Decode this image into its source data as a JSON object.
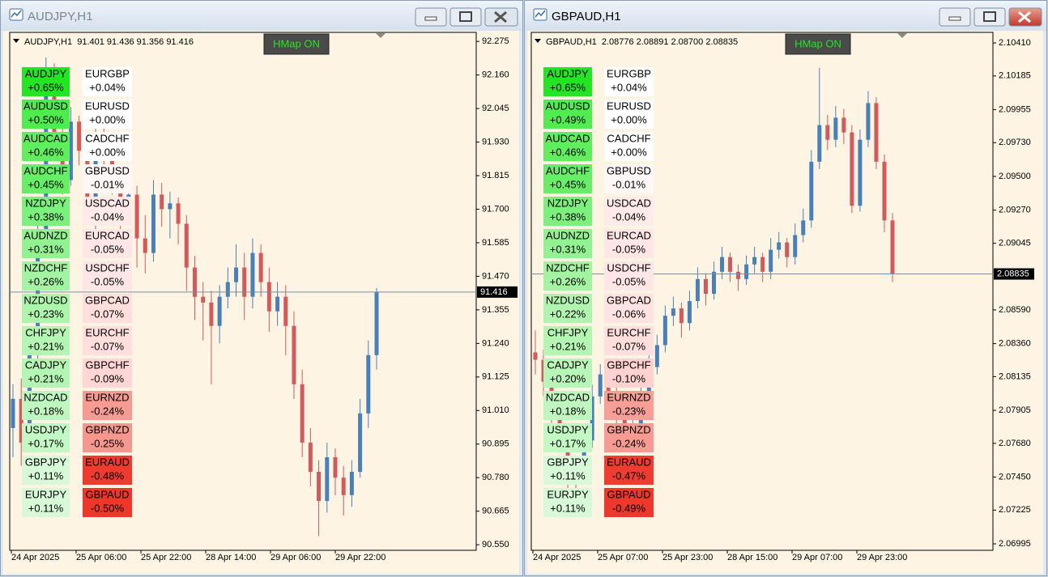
{
  "bull_color": "#4a80b8",
  "bear_color": "#d2595c",
  "windows": [
    {
      "title": "AUDJPY,H1",
      "info": "AUDJPY,H1  91.401 91.436 91.356 91.416",
      "button": "HMap ON",
      "ylim": [
        90.531,
        92.306
      ],
      "yticks": [
        92.275,
        {
          "value": 92.16,
          "label": "92.160"
        },
        92.045,
        {
          "value": 91.93,
          "label": "91.930"
        },
        91.815,
        {
          "value": 91.7,
          "label": "91.700"
        },
        91.585,
        {
          "value": 91.47,
          "label": "91.470"
        },
        91.355,
        {
          "value": 91.24,
          "label": "91.240"
        },
        91.125,
        {
          "value": 91.01,
          "label": "91.010"
        },
        90.895,
        {
          "value": 90.78,
          "label": "90.780"
        },
        90.665,
        {
          "value": 90.55,
          "label": "90.550"
        }
      ],
      "current_price": 91.416,
      "x_labels": [
        "24 Apr 2025",
        "25 Apr 06:00",
        "25 Apr 22:00",
        "28 Apr 14:00",
        "29 Apr 06:00",
        "29 Apr 22:00"
      ],
      "left_tiles": [
        {
          "symbol": "AUDJPY",
          "change": "+0.65%",
          "color": "#22e622"
        },
        {
          "symbol": "AUDUSD",
          "change": "+0.50%",
          "color": "#4ded4d"
        },
        {
          "symbol": "AUDCAD",
          "change": "+0.46%",
          "color": "#5eee5e"
        },
        {
          "symbol": "AUDCHF",
          "change": "+0.45%",
          "color": "#66ef66"
        },
        {
          "symbol": "NZDJPY",
          "change": "+0.38%",
          "color": "#7cf07c"
        },
        {
          "symbol": "AUDNZD",
          "change": "+0.31%",
          "color": "#92f292"
        },
        {
          "symbol": "NZDCHF",
          "change": "+0.26%",
          "color": "#a3f3a3"
        },
        {
          "symbol": "NZDUSD",
          "change": "+0.23%",
          "color": "#adf4ad"
        },
        {
          "symbol": "CHFJPY",
          "change": "+0.21%",
          "color": "#b4f5b4"
        },
        {
          "symbol": "CADJPY",
          "change": "+0.21%",
          "color": "#b4f5b4"
        },
        {
          "symbol": "NZDCAD",
          "change": "+0.18%",
          "color": "#bff6bf"
        },
        {
          "symbol": "USDJPY",
          "change": "+0.17%",
          "color": "#c3f7c3"
        },
        {
          "symbol": "GBPJPY",
          "change": "+0.11%",
          "color": "#d8f9d8"
        },
        {
          "symbol": "EURJPY",
          "change": "+0.11%",
          "color": "#d8f9d8"
        }
      ],
      "right_tiles": [
        {
          "symbol": "EURGBP",
          "change": "+0.04%",
          "color": "#ffffff"
        },
        {
          "symbol": "EURUSD",
          "change": "+0.00%",
          "color": "#ffffff"
        },
        {
          "symbol": "CADCHF",
          "change": "+0.00%",
          "color": "#ffffff"
        },
        {
          "symbol": "GBPUSD",
          "change": "-0.01%",
          "color": "#fff6f6"
        },
        {
          "symbol": "USDCAD",
          "change": "-0.04%",
          "color": "#ffeaea"
        },
        {
          "symbol": "EURCAD",
          "change": "-0.05%",
          "color": "#ffe6e6"
        },
        {
          "symbol": "USDCHF",
          "change": "-0.05%",
          "color": "#ffe6e6"
        },
        {
          "symbol": "GBPCAD",
          "change": "-0.07%",
          "color": "#ffdede"
        },
        {
          "symbol": "EURCHF",
          "change": "-0.07%",
          "color": "#ffdede"
        },
        {
          "symbol": "GBPCHF",
          "change": "-0.09%",
          "color": "#ffd6d6"
        },
        {
          "symbol": "EURNZD",
          "change": "-0.24%",
          "color": "#f59b94"
        },
        {
          "symbol": "GBPNZD",
          "change": "-0.25%",
          "color": "#f5968f"
        },
        {
          "symbol": "EURAUD",
          "change": "-0.48%",
          "color": "#ef3a2f"
        },
        {
          "symbol": "GBPAUD",
          "change": "-0.50%",
          "color": "#ee362b"
        }
      ],
      "candles": [
        [
          90.95,
          91.1,
          90.85,
          91.05
        ],
        [
          91.05,
          91.12,
          90.82,
          90.9
        ],
        [
          90.9,
          91.25,
          90.88,
          91.2
        ],
        [
          91.2,
          91.65,
          91.15,
          91.6
        ],
        [
          91.6,
          92.22,
          91.55,
          92.1
        ],
        [
          92.1,
          92.2,
          91.9,
          91.95
        ],
        [
          91.95,
          92.0,
          91.75,
          91.8
        ],
        [
          91.8,
          92.05,
          91.78,
          92.0
        ],
        [
          92.0,
          92.02,
          91.85,
          91.9
        ],
        [
          91.9,
          91.95,
          91.65,
          91.7
        ],
        [
          91.7,
          91.98,
          91.62,
          91.95
        ],
        [
          91.95,
          92.0,
          91.85,
          91.92
        ],
        [
          91.92,
          91.94,
          91.75,
          91.8
        ],
        [
          91.8,
          91.85,
          91.6,
          91.7
        ],
        [
          91.7,
          91.8,
          91.65,
          91.75
        ],
        [
          91.75,
          91.78,
          91.5,
          91.6
        ],
        [
          91.6,
          91.68,
          91.48,
          91.55
        ],
        [
          91.55,
          91.8,
          91.52,
          91.75
        ],
        [
          91.75,
          91.79,
          91.64,
          91.7
        ],
        [
          91.7,
          91.76,
          91.6,
          91.72
        ],
        [
          91.72,
          91.74,
          91.58,
          91.65
        ],
        [
          91.65,
          91.68,
          91.42,
          91.5
        ],
        [
          91.5,
          91.54,
          91.32,
          91.4
        ],
        [
          91.4,
          91.45,
          91.25,
          91.38
        ],
        [
          91.38,
          91.42,
          91.1,
          91.3
        ],
        [
          91.3,
          91.44,
          91.24,
          91.4
        ],
        [
          91.4,
          91.5,
          91.36,
          91.45
        ],
        [
          91.45,
          91.58,
          91.4,
          91.5
        ],
        [
          91.5,
          91.55,
          91.32,
          91.4
        ],
        [
          91.4,
          91.6,
          91.36,
          91.55
        ],
        [
          91.55,
          91.58,
          91.4,
          91.45
        ],
        [
          91.45,
          91.5,
          91.28,
          91.35
        ],
        [
          91.35,
          91.45,
          91.3,
          91.4
        ],
        [
          91.4,
          91.44,
          91.2,
          91.3
        ],
        [
          91.3,
          91.35,
          91.05,
          91.1
        ],
        [
          91.1,
          91.15,
          90.85,
          90.9
        ],
        [
          90.9,
          90.95,
          90.75,
          90.8
        ],
        [
          90.8,
          90.84,
          90.58,
          90.7
        ],
        [
          90.7,
          90.9,
          90.66,
          90.85
        ],
        [
          90.85,
          90.88,
          90.72,
          90.78
        ],
        [
          90.78,
          90.82,
          90.65,
          90.72
        ],
        [
          90.72,
          90.84,
          90.68,
          90.8
        ],
        [
          90.8,
          91.05,
          90.78,
          91.0
        ],
        [
          91.0,
          91.25,
          90.95,
          91.2
        ],
        [
          91.2,
          91.43,
          91.15,
          91.416
        ]
      ]
    },
    {
      "title": "GBPAUD,H1",
      "info": "GBPAUD,H1  2.08776 2.08891 2.08700 2.08835",
      "button": "HMap ON",
      "ylim": [
        2.06951,
        2.10482
      ],
      "yticks": [
        {
          "value": 2.1041,
          "label": "2.10410"
        },
        2.10185,
        2.09955,
        {
          "value": 2.0973,
          "label": "2.09730"
        },
        {
          "value": 2.095,
          "label": "2.09500"
        },
        {
          "value": 2.0927,
          "label": "2.09270"
        },
        2.09045,
        {
          "value": 2.0859,
          "label": "2.08590"
        },
        {
          "value": 2.0836,
          "label": "2.08360"
        },
        2.08135,
        2.07905,
        {
          "value": 2.0768,
          "label": "2.07680"
        },
        {
          "value": 2.0745,
          "label": "2.07450"
        },
        2.07225,
        2.06995
      ],
      "current_price": 2.08835,
      "x_labels": [
        "24 Apr 2025",
        "25 Apr 07:00",
        "25 Apr 23:00",
        "28 Apr 15:00",
        "29 Apr 07:00",
        "29 Apr 23:00"
      ],
      "left_tiles": [
        {
          "symbol": "AUDJPY",
          "change": "+0.65%",
          "color": "#22e622"
        },
        {
          "symbol": "AUDUSD",
          "change": "+0.49%",
          "color": "#50ed50"
        },
        {
          "symbol": "AUDCAD",
          "change": "+0.46%",
          "color": "#5eee5e"
        },
        {
          "symbol": "AUDCHF",
          "change": "+0.45%",
          "color": "#66ef66"
        },
        {
          "symbol": "NZDJPY",
          "change": "+0.38%",
          "color": "#7cf07c"
        },
        {
          "symbol": "AUDNZD",
          "change": "+0.31%",
          "color": "#92f292"
        },
        {
          "symbol": "NZDCHF",
          "change": "+0.26%",
          "color": "#a3f3a3"
        },
        {
          "symbol": "NZDUSD",
          "change": "+0.22%",
          "color": "#b0f4b0"
        },
        {
          "symbol": "CHFJPY",
          "change": "+0.21%",
          "color": "#b4f5b4"
        },
        {
          "symbol": "CADJPY",
          "change": "+0.20%",
          "color": "#b8f5b8"
        },
        {
          "symbol": "NZDCAD",
          "change": "+0.18%",
          "color": "#bff6bf"
        },
        {
          "symbol": "USDJPY",
          "change": "+0.17%",
          "color": "#c3f7c3"
        },
        {
          "symbol": "GBPJPY",
          "change": "+0.11%",
          "color": "#d8f9d8"
        },
        {
          "symbol": "EURJPY",
          "change": "+0.11%",
          "color": "#d8f9d8"
        }
      ],
      "right_tiles": [
        {
          "symbol": "EURGBP",
          "change": "+0.04%",
          "color": "#ffffff"
        },
        {
          "symbol": "EURUSD",
          "change": "+0.00%",
          "color": "#ffffff"
        },
        {
          "symbol": "CADCHF",
          "change": "+0.00%",
          "color": "#ffffff"
        },
        {
          "symbol": "GBPUSD",
          "change": "-0.01%",
          "color": "#fff6f6"
        },
        {
          "symbol": "USDCAD",
          "change": "-0.04%",
          "color": "#ffeaea"
        },
        {
          "symbol": "EURCAD",
          "change": "-0.05%",
          "color": "#ffe6e6"
        },
        {
          "symbol": "USDCHF",
          "change": "-0.05%",
          "color": "#ffe6e6"
        },
        {
          "symbol": "GBPCAD",
          "change": "-0.06%",
          "color": "#ffe2e2"
        },
        {
          "symbol": "EURCHF",
          "change": "-0.07%",
          "color": "#ffdede"
        },
        {
          "symbol": "GBPCHF",
          "change": "-0.10%",
          "color": "#ffd2d2"
        },
        {
          "symbol": "EURNZD",
          "change": "-0.23%",
          "color": "#f59f98"
        },
        {
          "symbol": "GBPNZD",
          "change": "-0.24%",
          "color": "#f59b94"
        },
        {
          "symbol": "EURAUD",
          "change": "-0.47%",
          "color": "#ef3c31"
        },
        {
          "symbol": "GBPAUD",
          "change": "-0.49%",
          "color": "#ee382d"
        }
      ],
      "candles": [
        [
          2.083,
          2.0845,
          2.0815,
          2.0825
        ],
        [
          2.0825,
          2.0832,
          2.08,
          2.081
        ],
        [
          2.081,
          2.0815,
          2.078,
          2.079
        ],
        [
          2.079,
          2.0798,
          2.0765,
          2.0775
        ],
        [
          2.0775,
          2.078,
          2.0735,
          2.075
        ],
        [
          2.075,
          2.0758,
          2.0728,
          2.0745
        ],
        [
          2.0745,
          2.0778,
          2.074,
          2.077
        ],
        [
          2.077,
          2.0808,
          2.0765,
          2.08
        ],
        [
          2.08,
          2.0822,
          2.0795,
          2.0815
        ],
        [
          2.0815,
          2.082,
          2.0792,
          2.08
        ],
        [
          2.08,
          2.0806,
          2.078,
          2.079
        ],
        [
          2.079,
          2.0795,
          2.0765,
          2.0775
        ],
        [
          2.0775,
          2.0788,
          2.077,
          2.078
        ],
        [
          2.078,
          2.0808,
          2.0776,
          2.08
        ],
        [
          2.08,
          2.0828,
          2.0795,
          2.082
        ],
        [
          2.082,
          2.0842,
          2.0815,
          2.0835
        ],
        [
          2.0835,
          2.0862,
          2.083,
          2.0855
        ],
        [
          2.0855,
          2.0868,
          2.0848,
          2.086
        ],
        [
          2.086,
          2.0864,
          2.084,
          2.085
        ],
        [
          2.085,
          2.0872,
          2.0845,
          2.0865
        ],
        [
          2.0865,
          2.0888,
          2.086,
          2.088
        ],
        [
          2.088,
          2.0884,
          2.0862,
          2.087
        ],
        [
          2.087,
          2.0892,
          2.0866,
          2.0885
        ],
        [
          2.0885,
          2.0902,
          2.088,
          2.0895
        ],
        [
          2.0895,
          2.0898,
          2.0878,
          2.0885
        ],
        [
          2.0885,
          2.089,
          2.0872,
          2.088
        ],
        [
          2.088,
          2.0896,
          2.0876,
          2.089
        ],
        [
          2.089,
          2.0902,
          2.0884,
          2.0895
        ],
        [
          2.0895,
          2.0898,
          2.0878,
          2.0885
        ],
        [
          2.0885,
          2.0908,
          2.088,
          2.09
        ],
        [
          2.09,
          2.0912,
          2.0894,
          2.0905
        ],
        [
          2.0905,
          2.0908,
          2.0888,
          2.0895
        ],
        [
          2.0895,
          2.0918,
          2.089,
          2.091
        ],
        [
          2.091,
          2.0928,
          2.0905,
          2.092
        ],
        [
          2.092,
          2.0968,
          2.0915,
          2.096
        ],
        [
          2.096,
          2.1024,
          2.0955,
          2.0985
        ],
        [
          2.0985,
          2.0992,
          2.0968,
          2.0975
        ],
        [
          2.0975,
          2.0998,
          2.097,
          2.099
        ],
        [
          2.099,
          2.0996,
          2.0972,
          2.098
        ],
        [
          2.098,
          2.0985,
          2.0925,
          2.093
        ],
        [
          2.093,
          2.0982,
          2.0926,
          2.0975
        ],
        [
          2.0975,
          2.1008,
          2.097,
          2.1
        ],
        [
          2.1,
          2.1004,
          2.0955,
          2.096
        ],
        [
          2.096,
          2.0965,
          2.0912,
          2.092
        ],
        [
          2.092,
          2.0925,
          2.0878,
          2.08835
        ]
      ]
    }
  ]
}
